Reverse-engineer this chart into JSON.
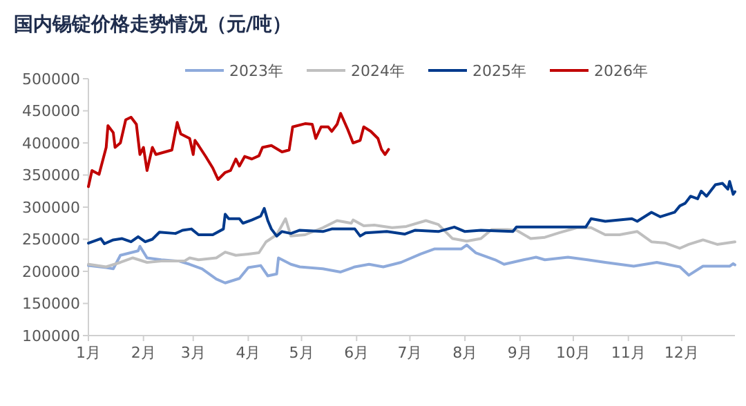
{
  "chart_data": {
    "type": "line",
    "title": "国内锡锭价格走势情况（元/吨）",
    "xlim": [
      "--01-01",
      "--12-31"
    ],
    "xticks": [
      {
        "value": "--01-01",
        "label": "1月"
      },
      {
        "value": "--02-01",
        "label": "2月"
      },
      {
        "value": "--03-01",
        "label": "3月"
      },
      {
        "value": "--04-01",
        "label": "4月"
      },
      {
        "value": "--05-01",
        "label": "5月"
      },
      {
        "value": "--06-01",
        "label": "6月"
      },
      {
        "value": "--07-01",
        "label": "7月"
      },
      {
        "value": "--08-01",
        "label": "8月"
      },
      {
        "value": "--09-01",
        "label": "9月"
      },
      {
        "value": "--10-01",
        "label": "10月"
      },
      {
        "value": "--11-01",
        "label": "11月"
      },
      {
        "value": "--12-01",
        "label": "12月"
      }
    ],
    "ylim": [
      100000,
      500000
    ],
    "yticks": [
      100000,
      150000,
      200000,
      250000,
      300000,
      350000,
      400000,
      450000,
      500000
    ],
    "grid": false,
    "legend": "top",
    "series": [
      {
        "name": "2023年",
        "color": "#8eaadb",
        "x": [
          "--01-01",
          "--01-11",
          "--01-15",
          "--01-19",
          "--01-29",
          "--01-30",
          "--02-03",
          "--02-11",
          "--02-21",
          "--02-27",
          "--03-06",
          "--03-14",
          "--03-19",
          "--03-27",
          "--04-01",
          "--04-08",
          "--04-12",
          "--04-17",
          "--04-18",
          "--04-25",
          "--04-30",
          "--05-13",
          "--05-23",
          "--05-31",
          "--06-08",
          "--06-16",
          "--06-26",
          "--07-07",
          "--07-15",
          "--07-30",
          "--08-02",
          "--08-07",
          "--08-18",
          "--08-23",
          "--09-03",
          "--09-10",
          "--09-15",
          "--09-28",
          "--10-09",
          "--10-19",
          "--11-04",
          "--11-17",
          "--11-30",
          "--12-05",
          "--12-13",
          "--12-28",
          "--12-30",
          "--12-31"
        ],
        "values": [
          209000,
          206000,
          204000,
          225000,
          232000,
          239000,
          221000,
          218000,
          216000,
          211000,
          204000,
          188000,
          182000,
          189000,
          206000,
          209000,
          193000,
          196000,
          221000,
          211000,
          207000,
          204000,
          199000,
          207000,
          211000,
          207000,
          214000,
          227000,
          235000,
          235000,
          241000,
          229000,
          218000,
          211000,
          218000,
          222000,
          218000,
          222000,
          218000,
          214000,
          208000,
          214000,
          207000,
          194000,
          208000,
          208000,
          212000,
          210000
        ]
      },
      {
        "name": "2024年",
        "color": "#bfbfbf",
        "x": [
          "--01-01",
          "--01-11",
          "--01-19",
          "--01-26",
          "--02-03",
          "--02-11",
          "--02-24",
          "--02-27",
          "--03-04",
          "--03-14",
          "--03-19",
          "--03-25",
          "--04-01",
          "--04-07",
          "--04-11",
          "--04-17",
          "--04-22",
          "--04-25",
          "--05-03",
          "--05-13",
          "--05-21",
          "--05-29",
          "--05-30",
          "--06-05",
          "--06-11",
          "--06-21",
          "--06-29",
          "--07-10",
          "--07-17",
          "--07-25",
          "--08-02",
          "--08-10",
          "--08-16",
          "--08-25",
          "--08-30",
          "--09-07",
          "--09-15",
          "--09-23",
          "--10-03",
          "--10-11",
          "--10-19",
          "--10-27",
          "--11-06",
          "--11-14",
          "--11-22",
          "--11-30",
          "--12-05",
          "--12-13",
          "--12-21",
          "--12-31"
        ],
        "values": [
          211000,
          207000,
          214000,
          221000,
          214000,
          216000,
          216000,
          221000,
          218000,
          221000,
          230000,
          225000,
          227000,
          229000,
          246000,
          257000,
          282000,
          255000,
          257000,
          268000,
          279000,
          275000,
          280000,
          271000,
          272000,
          268000,
          270000,
          279000,
          273000,
          251000,
          247000,
          251000,
          265000,
          265000,
          264000,
          251000,
          253000,
          260000,
          268000,
          268000,
          257000,
          257000,
          262000,
          246000,
          244000,
          236000,
          242000,
          249000,
          242000,
          246000
        ]
      },
      {
        "name": "2025年",
        "color": "#003a8c",
        "x": [
          "--01-01",
          "--01-08",
          "--01-10",
          "--01-15",
          "--01-20",
          "--01-25",
          "--01-29",
          "--02-02",
          "--02-06",
          "--02-10",
          "--02-19",
          "--02-23",
          "--02-28",
          "--03-04",
          "--03-12",
          "--03-18",
          "--03-19",
          "--03-21",
          "--03-27",
          "--03-29",
          "--04-03",
          "--04-08",
          "--04-10",
          "--04-12",
          "--04-14",
          "--04-17",
          "--04-20",
          "--04-25",
          "--04-30",
          "--05-13",
          "--05-18",
          "--05-31",
          "--06-03",
          "--06-06",
          "--06-18",
          "--06-28",
          "--07-04",
          "--07-17",
          "--07-26",
          "--08-01",
          "--08-10",
          "--08-28",
          "--08-30",
          "--09-15",
          "--10-01",
          "--10-08",
          "--10-11",
          "--10-19",
          "--11-03",
          "--11-06",
          "--11-14",
          "--11-19",
          "--11-27",
          "--11-30",
          "--12-03",
          "--12-06",
          "--12-10",
          "--12-12",
          "--12-15",
          "--12-20",
          "--12-24",
          "--12-27",
          "--12-28",
          "--12-30",
          "--12-31"
        ],
        "values": [
          244000,
          251000,
          243000,
          249000,
          251000,
          246000,
          254000,
          246000,
          250000,
          261000,
          259000,
          264000,
          266000,
          257000,
          257000,
          266000,
          289000,
          282000,
          282000,
          275000,
          280000,
          286000,
          298000,
          279000,
          266000,
          255000,
          262000,
          259000,
          264000,
          262000,
          266000,
          266000,
          255000,
          260000,
          262000,
          258000,
          264000,
          262000,
          269000,
          262000,
          264000,
          262000,
          269000,
          269000,
          269000,
          269000,
          282000,
          278000,
          282000,
          278000,
          292000,
          285000,
          292000,
          302000,
          306000,
          317000,
          313000,
          325000,
          317000,
          335000,
          337000,
          328000,
          340000,
          320000,
          324000
        ]
      },
      {
        "name": "2026年",
        "color": "#c00000",
        "x": [
          "--01-01",
          "--01-03",
          "--01-07",
          "--01-11",
          "--01-12",
          "--01-15",
          "--01-16",
          "--01-19",
          "--01-22",
          "--01-25",
          "--01-28",
          "--01-30",
          "--02-01",
          "--02-03",
          "--02-06",
          "--02-08",
          "--02-17",
          "--02-20",
          "--02-22",
          "--02-27",
          "--03-01",
          "--03-02",
          "--03-04",
          "--03-08",
          "--03-12",
          "--03-15",
          "--03-19",
          "--03-22",
          "--03-25",
          "--03-27",
          "--03-30",
          "--04-03",
          "--04-07",
          "--04-09",
          "--04-14",
          "--04-20",
          "--04-24",
          "--04-26",
          "--05-03",
          "--05-07",
          "--05-09",
          "--05-12",
          "--05-16",
          "--05-18",
          "--05-21",
          "--05-23",
          "--05-27",
          "--05-30",
          "--06-03",
          "--06-05",
          "--06-09",
          "--06-13",
          "--06-15",
          "--06-17",
          "--06-19"
        ],
        "values": [
          332000,
          357000,
          351000,
          393000,
          427000,
          416000,
          393000,
          400000,
          436000,
          440000,
          429000,
          382000,
          393000,
          357000,
          393000,
          382000,
          389000,
          432000,
          414000,
          407000,
          382000,
          404000,
          396000,
          379000,
          361000,
          343000,
          354000,
          357000,
          375000,
          364000,
          379000,
          375000,
          380000,
          393000,
          396000,
          386000,
          389000,
          425000,
          430000,
          429000,
          407000,
          425000,
          425000,
          418000,
          429000,
          446000,
          421000,
          400000,
          404000,
          425000,
          418000,
          407000,
          390000,
          382000,
          390000
        ]
      }
    ]
  }
}
